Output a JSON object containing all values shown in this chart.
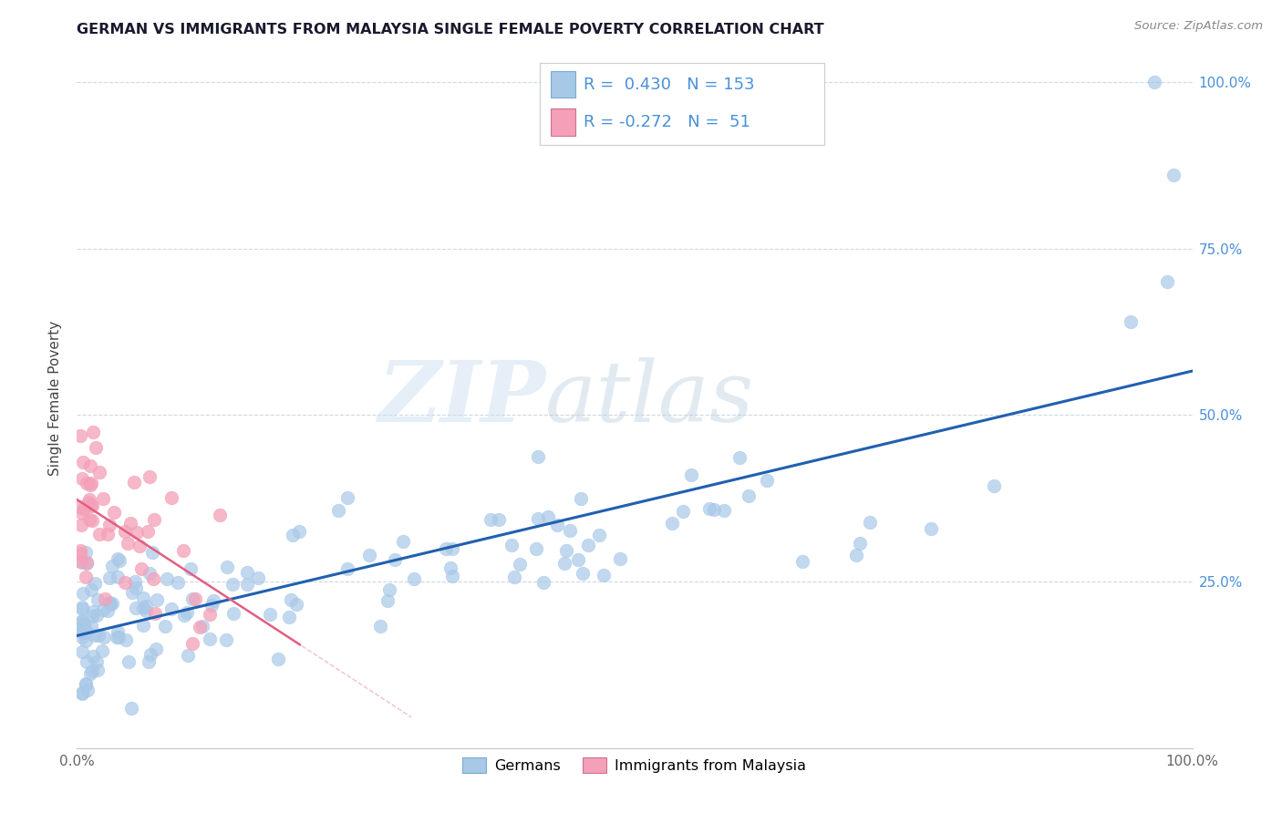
{
  "title": "GERMAN VS IMMIGRANTS FROM MALAYSIA SINGLE FEMALE POVERTY CORRELATION CHART",
  "source": "Source: ZipAtlas.com",
  "ylabel": "Single Female Poverty",
  "legend_labels": [
    "Germans",
    "Immigrants from Malaysia"
  ],
  "blue_R": 0.43,
  "blue_N": 153,
  "pink_R": -0.272,
  "pink_N": 51,
  "blue_color": "#a8c8e8",
  "pink_color": "#f4a0b8",
  "blue_line_color": "#2060b0",
  "pink_line_color": "#e06080",
  "watermark_zip": "ZIP",
  "watermark_atlas": "atlas",
  "background_color": "#ffffff",
  "grid_color": "#d0d8e0",
  "tick_color": "#4a90d9",
  "title_color": "#1a1a2e",
  "source_color": "#888888"
}
